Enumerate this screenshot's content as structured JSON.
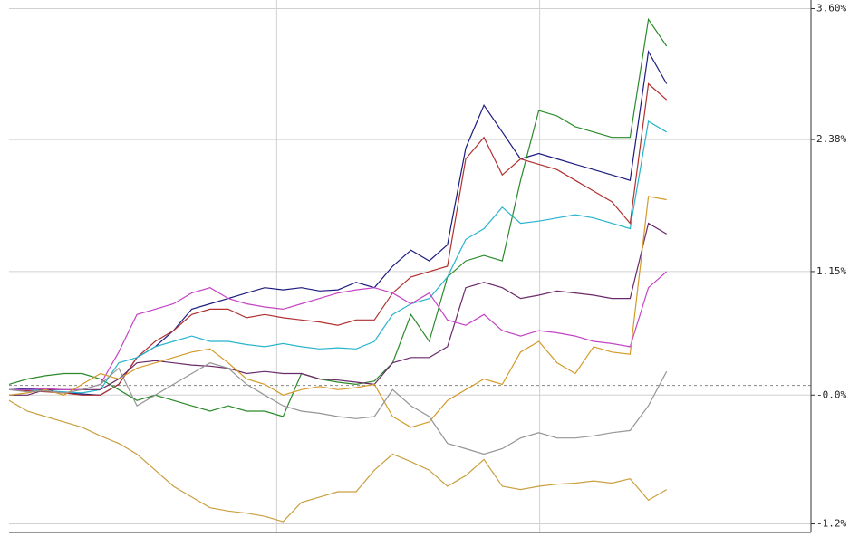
{
  "chart_data": {
    "type": "line",
    "x": [
      0,
      1,
      2,
      3,
      4,
      5,
      6,
      7,
      8,
      9,
      10,
      11,
      12,
      13,
      14,
      15,
      16,
      17,
      18,
      19,
      20,
      21,
      22,
      23,
      24,
      25,
      26,
      27,
      28,
      29,
      30,
      31,
      32,
      33,
      34,
      35,
      36
    ],
    "xlim": [
      0,
      43.9
    ],
    "xgrid": [
      14.65,
      29.05
    ],
    "ylim": [
      -1.28,
      3.68
    ],
    "yticks": [
      {
        "value": 3.6,
        "label": "3.60%"
      },
      {
        "value": 2.38,
        "label": "2.38%"
      },
      {
        "value": 1.15,
        "label": "1.15%"
      },
      {
        "value": 0,
        "label": "-0.0%"
      },
      {
        "value": -1.2,
        "label": "-1.2%"
      }
    ],
    "baseline": 0.09,
    "grid": true,
    "series": [
      {
        "color": "#1c1c80",
        "values": [
          0.05,
          0.06,
          0.05,
          0.02,
          0.01,
          0.0,
          0.1,
          0.35,
          0.45,
          0.6,
          0.8,
          0.85,
          0.9,
          0.95,
          1.0,
          0.98,
          1.0,
          0.97,
          0.98,
          1.05,
          1.0,
          1.2,
          1.35,
          1.25,
          1.4,
          2.3,
          2.7,
          2.45,
          2.2,
          2.25,
          2.2,
          2.15,
          2.1,
          2.05,
          2.0,
          3.2,
          2.9
        ]
      },
      {
        "color": "#b03030",
        "values": [
          0.05,
          0.04,
          0.03,
          0.02,
          0.0,
          0.0,
          0.1,
          0.35,
          0.5,
          0.6,
          0.75,
          0.8,
          0.8,
          0.72,
          0.75,
          0.72,
          0.7,
          0.68,
          0.65,
          0.7,
          0.7,
          0.95,
          1.1,
          1.15,
          1.2,
          2.2,
          2.4,
          2.05,
          2.2,
          2.15,
          2.1,
          2.0,
          1.9,
          1.8,
          1.6,
          2.9,
          2.75
        ]
      },
      {
        "color": "#2a8a2a",
        "values": [
          0.1,
          0.15,
          0.18,
          0.2,
          0.2,
          0.15,
          0.05,
          -0.05,
          0.0,
          -0.05,
          -0.1,
          -0.15,
          -0.1,
          -0.15,
          -0.15,
          -0.2,
          0.2,
          0.15,
          0.12,
          0.1,
          0.13,
          0.3,
          0.75,
          0.5,
          1.1,
          1.25,
          1.3,
          1.25,
          2.0,
          2.65,
          2.6,
          2.5,
          2.45,
          2.4,
          2.4,
          3.5,
          3.25
        ]
      },
      {
        "color": "#28b4cc",
        "values": [
          0.05,
          0.05,
          0.04,
          0.03,
          0.02,
          0.05,
          0.3,
          0.35,
          0.45,
          0.5,
          0.55,
          0.5,
          0.5,
          0.47,
          0.45,
          0.48,
          0.45,
          0.43,
          0.44,
          0.43,
          0.5,
          0.75,
          0.85,
          0.9,
          1.1,
          1.45,
          1.55,
          1.75,
          1.6,
          1.62,
          1.65,
          1.68,
          1.65,
          1.6,
          1.55,
          2.55,
          2.45
        ]
      },
      {
        "color": "#6a2a6a",
        "values": [
          0.0,
          0.0,
          0.05,
          0.05,
          0.05,
          0.05,
          0.15,
          0.3,
          0.32,
          0.3,
          0.28,
          0.27,
          0.25,
          0.2,
          0.22,
          0.2,
          0.2,
          0.15,
          0.14,
          0.12,
          0.1,
          0.3,
          0.35,
          0.35,
          0.45,
          1.0,
          1.05,
          1.0,
          0.9,
          0.93,
          0.97,
          0.95,
          0.93,
          0.9,
          0.9,
          1.6,
          1.5
        ]
      },
      {
        "color": "#c444c4",
        "values": [
          0.05,
          0.05,
          0.06,
          0.05,
          0.05,
          0.1,
          0.4,
          0.75,
          0.8,
          0.85,
          0.95,
          1.0,
          0.9,
          0.85,
          0.82,
          0.8,
          0.85,
          0.9,
          0.95,
          0.98,
          1.0,
          0.95,
          0.85,
          0.95,
          0.7,
          0.65,
          0.75,
          0.6,
          0.55,
          0.6,
          0.58,
          0.55,
          0.5,
          0.48,
          0.45,
          1.0,
          1.15
        ]
      },
      {
        "color": "#c9a040",
        "values": [
          -0.05,
          -0.15,
          -0.2,
          -0.25,
          -0.3,
          -0.38,
          -0.45,
          -0.55,
          -0.7,
          -0.85,
          -0.95,
          -1.05,
          -1.08,
          -1.1,
          -1.13,
          -1.18,
          -1.0,
          -0.95,
          -0.9,
          -0.9,
          -0.7,
          -0.55,
          -0.62,
          -0.7,
          -0.85,
          -0.75,
          -0.6,
          -0.85,
          -0.88,
          -0.85,
          -0.83,
          -0.82,
          -0.8,
          -0.82,
          -0.78,
          -0.98,
          -0.88
        ]
      },
      {
        "color": "#d49a2a",
        "values": [
          0.0,
          0.02,
          0.05,
          0.0,
          0.1,
          0.2,
          0.15,
          0.25,
          0.3,
          0.35,
          0.4,
          0.43,
          0.3,
          0.15,
          0.1,
          0.0,
          0.05,
          0.08,
          0.05,
          0.07,
          0.1,
          -0.2,
          -0.3,
          -0.25,
          -0.05,
          0.05,
          0.15,
          0.1,
          0.4,
          0.5,
          0.3,
          0.2,
          0.45,
          0.4,
          0.38,
          1.85,
          1.82
        ]
      },
      {
        "color": "#959595",
        "values": [
          0.05,
          0.03,
          0.04,
          0.02,
          0.05,
          0.1,
          0.25,
          -0.1,
          0.0,
          0.1,
          0.2,
          0.3,
          0.25,
          0.1,
          0.0,
          -0.1,
          -0.15,
          -0.17,
          -0.2,
          -0.22,
          -0.2,
          0.05,
          -0.1,
          -0.2,
          -0.45,
          -0.5,
          -0.55,
          -0.5,
          -0.4,
          -0.35,
          -0.4,
          -0.4,
          -0.38,
          -0.35,
          -0.33,
          -0.1,
          0.22
        ]
      }
    ]
  }
}
